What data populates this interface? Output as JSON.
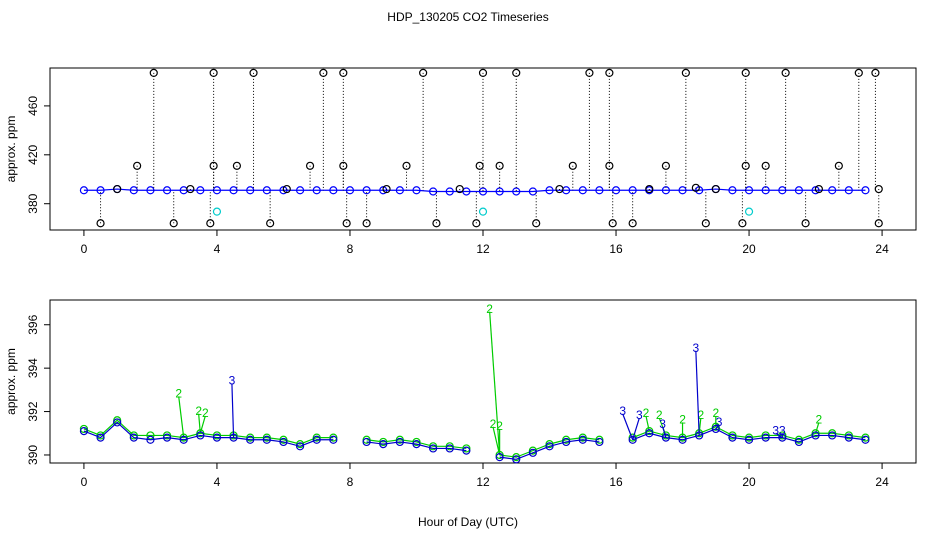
{
  "chart_data": [
    {
      "type": "scatter",
      "title": "HDP_130205  CO2 Timeseries",
      "y_label": "approx. ppm",
      "xlim": [
        -1.02,
        25.02
      ],
      "xticks": [
        0,
        4,
        8,
        12,
        16,
        20,
        24
      ],
      "ylim": [
        358.5,
        491
      ],
      "yticks": [
        380,
        420,
        460
      ],
      "series": [
        {
          "name": "blue",
          "color": "#0000ff",
          "line": true,
          "x": [
            0,
            0.5,
            1,
            1.5,
            2,
            2.5,
            3,
            3.5,
            4,
            4.5,
            5,
            5.5,
            6,
            6.5,
            7,
            7.5,
            8,
            8.5,
            9,
            9.5,
            10,
            10.5,
            11,
            11.5,
            12,
            12.5,
            13,
            13.5,
            14,
            14.5,
            15,
            15.5,
            16,
            16.5,
            17,
            17.5,
            18,
            18.5,
            19,
            19.5,
            20,
            20.5,
            21,
            21.5,
            22,
            22.5,
            23,
            23.5
          ],
          "values": [
            391,
            391,
            392,
            391,
            391,
            391,
            391,
            391,
            391,
            391,
            391,
            391,
            391,
            391,
            391,
            391,
            391,
            391,
            391,
            391,
            391,
            390,
            390,
            390,
            390,
            390,
            390,
            390,
            391,
            391,
            391,
            391,
            391,
            391,
            391,
            391,
            391,
            391,
            392,
            391,
            391,
            391,
            391,
            391,
            391,
            391,
            391,
            391
          ]
        },
        {
          "name": "black",
          "color": "#000000",
          "drop": true,
          "x": [
            2.1,
            3.9,
            5.1,
            7.2,
            7.8,
            10.2,
            12.0,
            13.0,
            15.2,
            15.8,
            18.1,
            19.9,
            21.1,
            23.3,
            23.8,
            0.5,
            2.7,
            3.8,
            5.6,
            7.9,
            8.5,
            10.6,
            11.8,
            13.6,
            15.9,
            16.5,
            18.7,
            19.8,
            21.7,
            23.9,
            1.6,
            3.9,
            4.6,
            6.8,
            7.8,
            9.7,
            11.9,
            12.5,
            14.7,
            15.8,
            17.5,
            19.9,
            20.5,
            22.7,
            1.0,
            3.2,
            6.1,
            9.1,
            11.3,
            14.3,
            17.0,
            18.4,
            19.0,
            22.1,
            23.9
          ],
          "values": [
            487,
            487,
            487,
            487,
            487,
            487,
            487,
            487,
            487,
            487,
            487,
            487,
            487,
            487,
            487,
            364,
            364,
            364,
            364,
            364,
            364,
            364,
            364,
            364,
            364,
            364,
            364,
            364,
            364,
            364,
            411,
            411,
            411,
            411,
            411,
            411,
            411,
            411,
            411,
            411,
            411,
            411,
            411,
            411,
            392,
            392,
            392,
            392,
            392,
            392,
            392,
            393,
            392,
            392,
            392
          ]
        },
        {
          "name": "cyan",
          "color": "#00cccc",
          "x": [
            4.0,
            12.0,
            20.0
          ],
          "values": [
            373.5,
            373.5,
            373.5
          ]
        }
      ]
    },
    {
      "type": "scatter",
      "y_label": "approx. ppm",
      "x_label": "Hour of Day (UTC)",
      "xlim": [
        -1.02,
        25.02
      ],
      "xticks": [
        0,
        4,
        8,
        12,
        16,
        20,
        24
      ],
      "ylim": [
        389.63,
        397.14
      ],
      "yticks": [
        390,
        392,
        394,
        396
      ],
      "series": [
        {
          "name": "2",
          "color": "#00cc00",
          "line": true,
          "x": [
            0,
            0.5,
            1,
            1.5,
            2,
            2.5,
            3,
            3.5,
            4,
            4.5,
            5,
            5.5,
            6,
            6.5,
            7,
            7.5,
            8,
            8.5,
            9,
            9.5,
            10,
            10.5,
            11,
            11.5,
            12,
            12.5,
            13,
            13.5,
            14,
            14.5,
            15,
            15.5,
            16,
            16.5,
            17,
            17.5,
            18,
            18.5,
            19,
            19.5,
            20,
            20.5,
            21,
            21.5,
            22,
            22.5,
            23,
            23.5
          ],
          "values": [
            391.2,
            390.9,
            391.6,
            390.9,
            390.9,
            390.9,
            390.8,
            391.0,
            390.9,
            390.9,
            390.8,
            390.8,
            390.7,
            390.5,
            390.8,
            390.8,
            null,
            390.7,
            390.6,
            390.7,
            390.6,
            390.4,
            390.4,
            390.3,
            null,
            390.0,
            389.9,
            390.2,
            390.5,
            390.7,
            390.8,
            390.7,
            null,
            390.8,
            391.1,
            390.9,
            390.8,
            391.0,
            391.3,
            390.9,
            390.8,
            390.9,
            390.9,
            390.7,
            391.0,
            391.0,
            390.9,
            390.8
          ],
          "digit_x": [
            2.85,
            3.45,
            3.65,
            12.2,
            12.3,
            12.5,
            16.9,
            17.3,
            18.0,
            18.55,
            19.0,
            22.1
          ],
          "digit_values": [
            392.7,
            391.9,
            391.8,
            396.6,
            391.3,
            391.2,
            391.8,
            391.7,
            391.5,
            391.7,
            391.8,
            391.5
          ]
        },
        {
          "name": "3",
          "color": "#0000cc",
          "line": true,
          "x": [
            0,
            0.5,
            1,
            1.5,
            2,
            2.5,
            3,
            3.5,
            4,
            4.5,
            5,
            5.5,
            6,
            6.5,
            7,
            7.5,
            8,
            8.5,
            9,
            9.5,
            10,
            10.5,
            11,
            11.5,
            12,
            12.5,
            13,
            13.5,
            14,
            14.5,
            15,
            15.5,
            16,
            16.5,
            17,
            17.5,
            18,
            18.5,
            19,
            19.5,
            20,
            20.5,
            21,
            21.5,
            22,
            22.5,
            23,
            23.5
          ],
          "values": [
            391.1,
            390.8,
            391.5,
            390.8,
            390.7,
            390.8,
            390.7,
            390.9,
            390.8,
            390.8,
            390.7,
            390.7,
            390.6,
            390.4,
            390.7,
            390.7,
            null,
            390.6,
            390.5,
            390.6,
            390.5,
            390.3,
            390.3,
            390.2,
            null,
            389.9,
            389.8,
            390.1,
            390.4,
            390.6,
            390.7,
            390.6,
            null,
            390.7,
            391.0,
            390.8,
            390.7,
            390.9,
            391.2,
            390.8,
            390.7,
            390.8,
            390.8,
            390.6,
            390.9,
            390.9,
            390.8,
            390.7
          ],
          "digit_x": [
            4.45,
            16.2,
            16.7,
            17.4,
            18.4,
            19.1,
            20.8,
            21.0
          ],
          "digit_values": [
            393.3,
            391.9,
            391.7,
            391.3,
            394.8,
            391.4,
            391.0,
            391.0
          ]
        }
      ]
    }
  ]
}
